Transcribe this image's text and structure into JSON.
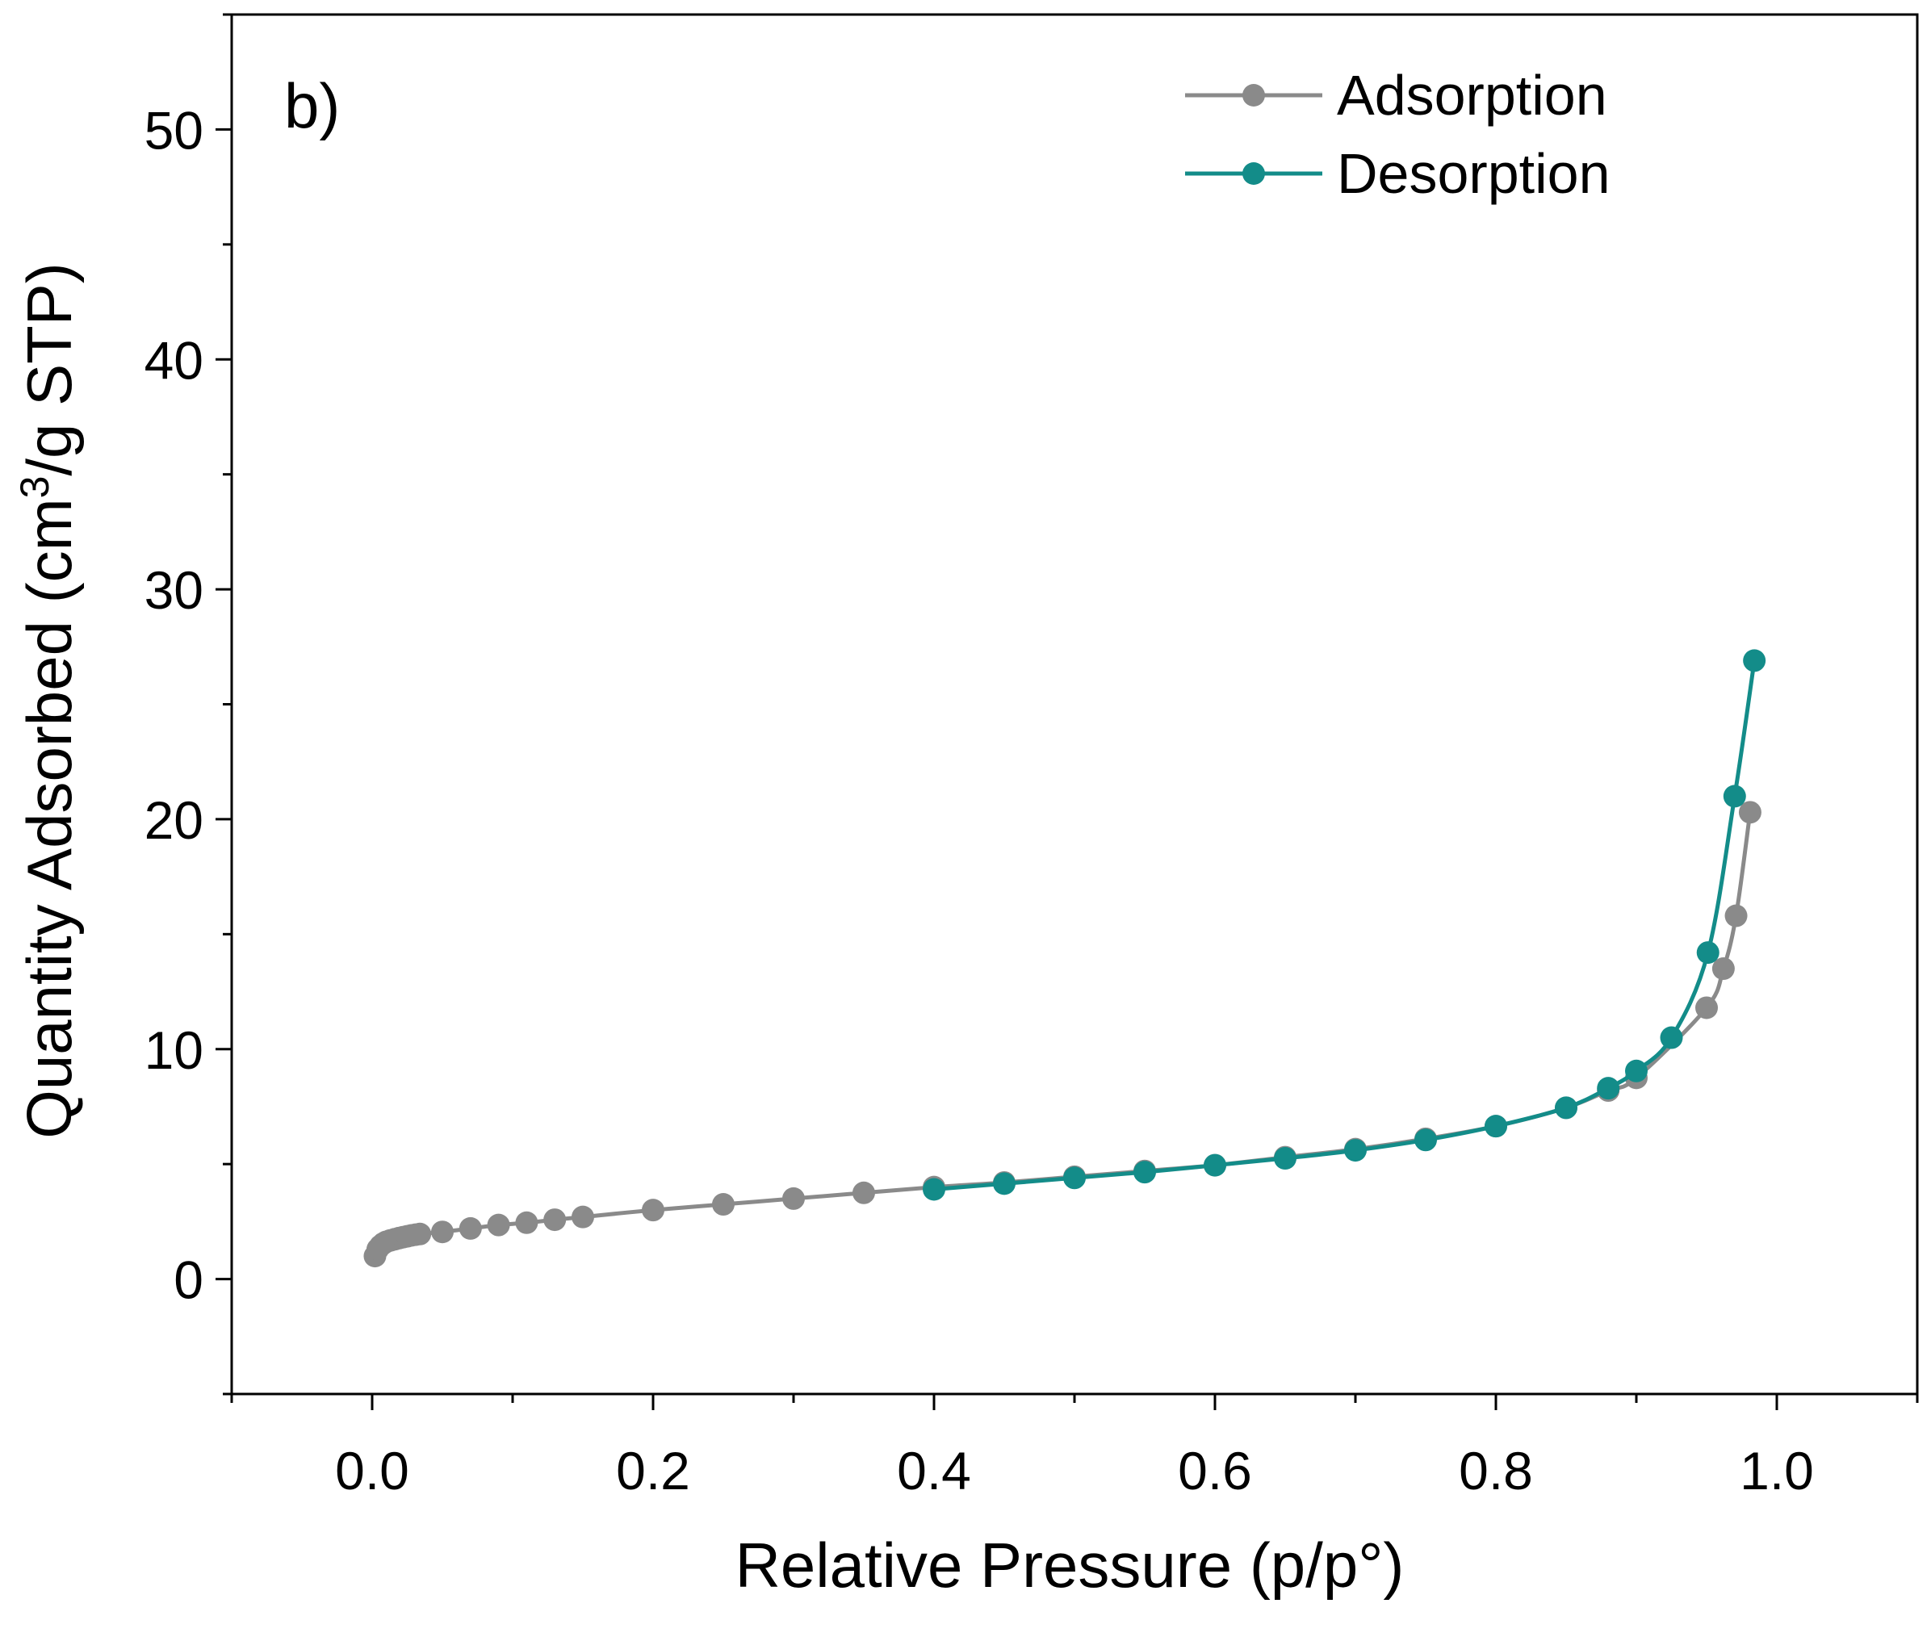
{
  "chart_data": {
    "type": "scatter",
    "panel_label": "b)",
    "xlabel": "Relative Pressure (p/p°)",
    "ylabel_parts": [
      "Quantity Adsorbed (cm",
      "3",
      "/g STP)"
    ],
    "xlim": [
      -0.1,
      1.1
    ],
    "ylim": [
      -5,
      55
    ],
    "xticks": [
      0.0,
      0.2,
      0.4,
      0.6,
      0.8,
      1.0
    ],
    "xtick_labels": [
      "0.0",
      "0.2",
      "0.4",
      "0.6",
      "0.8",
      "1.0"
    ],
    "yticks": [
      0,
      10,
      20,
      30,
      40,
      50
    ],
    "ytick_labels": [
      "0",
      "10",
      "20",
      "30",
      "40",
      "50"
    ],
    "grid": false,
    "legend_position": "top-right",
    "series": [
      {
        "name": "Adsorption",
        "color": "#8a8a8a",
        "marker": "circle",
        "line": true,
        "x": [
          0.002,
          0.004,
          0.006,
          0.008,
          0.01,
          0.013,
          0.016,
          0.019,
          0.022,
          0.025,
          0.028,
          0.031,
          0.034,
          0.05,
          0.07,
          0.09,
          0.11,
          0.13,
          0.15,
          0.2,
          0.25,
          0.3,
          0.35,
          0.4,
          0.45,
          0.5,
          0.55,
          0.6,
          0.65,
          0.7,
          0.75,
          0.8,
          0.85,
          0.88,
          0.9,
          0.95,
          0.962,
          0.971,
          0.981
        ],
        "y": [
          1.0,
          1.3,
          1.45,
          1.55,
          1.62,
          1.68,
          1.73,
          1.78,
          1.82,
          1.86,
          1.9,
          1.93,
          1.96,
          2.05,
          2.2,
          2.35,
          2.45,
          2.58,
          2.7,
          3.0,
          3.25,
          3.5,
          3.75,
          4.0,
          4.2,
          4.45,
          4.7,
          4.95,
          5.3,
          5.65,
          6.1,
          6.65,
          7.45,
          8.2,
          8.75,
          11.8,
          13.5,
          15.8,
          20.3
        ]
      },
      {
        "name": "Desorption",
        "color": "#138c89",
        "marker": "circle",
        "line": true,
        "x": [
          0.4,
          0.45,
          0.5,
          0.55,
          0.6,
          0.65,
          0.7,
          0.75,
          0.8,
          0.85,
          0.88,
          0.9,
          0.925,
          0.951,
          0.97,
          0.984
        ],
        "y": [
          3.9,
          4.15,
          4.4,
          4.65,
          4.95,
          5.25,
          5.6,
          6.05,
          6.65,
          7.45,
          8.3,
          9.05,
          10.5,
          14.2,
          21.0,
          26.9
        ]
      }
    ]
  }
}
